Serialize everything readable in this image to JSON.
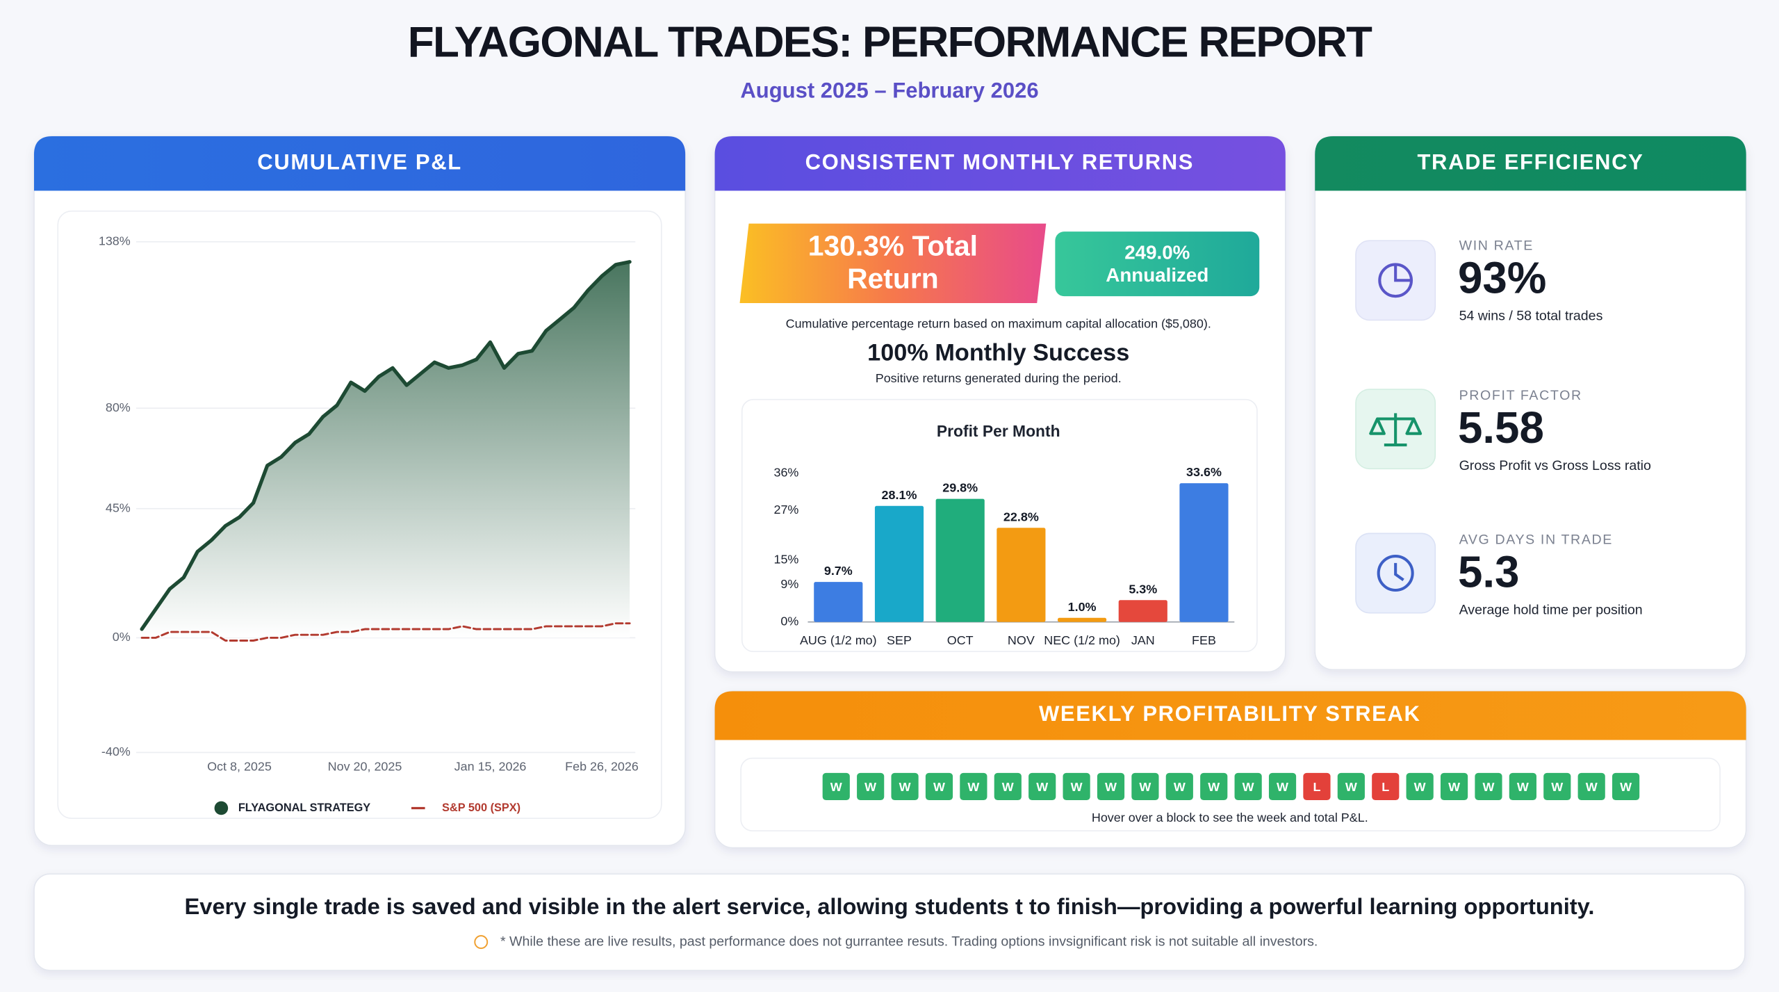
{
  "header": {
    "title": "FLYAGONAL TRADES: PERFORMANCE REPORT",
    "subtitle": "August 2025 – February 2026"
  },
  "chart_data": [
    {
      "type": "line",
      "title": "CUMULATIVE P&L",
      "categories": [
        null,
        null,
        null,
        null,
        null,
        null,
        null,
        "Oct 8, 2025",
        null,
        null,
        null,
        null,
        null,
        null,
        null,
        null,
        "Nov 20, 2025",
        null,
        null,
        null,
        null,
        null,
        null,
        null,
        null,
        "Jan 15, 2026",
        null,
        null,
        null,
        null,
        null,
        null,
        null,
        "Feb 26, 2026",
        null,
        null
      ],
      "series": [
        {
          "name": "FLYAGONAL STRATEGY",
          "color": "#1d4a33",
          "style": "solid",
          "fill": true,
          "values": [
            3,
            10,
            17,
            21,
            30,
            34,
            39,
            42,
            47,
            60,
            63,
            68,
            71,
            77,
            81,
            89,
            86,
            91,
            94,
            88,
            92,
            96,
            94,
            95,
            97,
            103,
            94,
            99,
            100,
            107,
            111,
            115,
            121,
            126,
            130,
            131
          ]
        },
        {
          "name": "S&P 500 (SPX)",
          "color": "#b23a2f",
          "style": "dashed",
          "fill": false,
          "values": [
            0,
            0,
            2,
            2,
            2,
            2,
            -1,
            -1,
            -1,
            0,
            0,
            1,
            1,
            1,
            2,
            2,
            3,
            3,
            3,
            3,
            3,
            3,
            3,
            4,
            3,
            3,
            3,
            3,
            3,
            4,
            4,
            4,
            4,
            4,
            5,
            5
          ]
        }
      ],
      "ylim": [
        -40,
        138
      ],
      "yticks": [
        {
          "value": 138,
          "label": "138%"
        },
        {
          "value": 80,
          "label": "80%"
        },
        {
          "value": 45,
          "label": "45%"
        },
        {
          "value": 0,
          "label": "0%"
        },
        {
          "value": -40,
          "label": "-40%"
        }
      ],
      "grid": true,
      "legend": "bottom"
    },
    {
      "type": "bar",
      "title": "Profit Per Month",
      "categories": [
        "AUG (1/2 mo)",
        "SEP",
        "OCT",
        "NOV",
        "NEC (1/2 mo)",
        "JAN",
        "FEB"
      ],
      "values": [
        9.7,
        28.1,
        29.8,
        22.8,
        1.0,
        5.3,
        33.6
      ],
      "value_labels": [
        "9.7%",
        "28.1%",
        "29.8%",
        "22.8%",
        "1.0%",
        "5.3%",
        "33.6%"
      ],
      "colors": [
        "#3d7de2",
        "#19a8c9",
        "#20ad7c",
        "#f39b12",
        "#f39b12",
        "#e5483c",
        "#3d7de2"
      ],
      "ylim": [
        0,
        36
      ],
      "yticks": [
        {
          "value": 36,
          "label": "36%"
        },
        {
          "value": 27,
          "label": "27%"
        },
        {
          "value": 15,
          "label": "15%"
        },
        {
          "value": 9,
          "label": "9%"
        },
        {
          "value": 0,
          "label": "0%"
        }
      ],
      "grid": false
    }
  ],
  "returns": {
    "title": "CONSISTENT MONTHLY RETURNS",
    "total": "130.3% Total Return",
    "annualized": "249.0% Annualized",
    "caption": "Cumulative percentage return based on maximum capital allocation ($5,080).",
    "success": "100% Monthly Success",
    "success_note": "Positive returns generated during the period."
  },
  "efficiency": {
    "title": "TRADE EFFICIENCY",
    "metrics": [
      {
        "label": "WIN RATE",
        "value": "93%",
        "note": "54 wins / 58 total trades"
      },
      {
        "label": "PROFIT FACTOR",
        "value": "5.58",
        "note": "Gross Profit vs Gross Loss ratio"
      },
      {
        "label": "AVG DAYS IN TRADE",
        "value": "5.3",
        "note": "Average hold time per position"
      }
    ]
  },
  "streak": {
    "title": "WEEKLY PROFITABILITY STREAK",
    "weeks": [
      "W",
      "W",
      "W",
      "W",
      "W",
      "W",
      "W",
      "W",
      "W",
      "W",
      "W",
      "W",
      "W",
      "W",
      "L",
      "W",
      "L",
      "W",
      "W",
      "W",
      "W",
      "W",
      "W",
      "W"
    ],
    "hint": "Hover over a block to see the week and total P&L."
  },
  "footer": {
    "statement": "Every single trade is saved and visible in the alert service, allowing students t to finish—providing a powerful learning opportunity.",
    "disclaimer": "* While these are live results, past performance does not gurrantee resuts. Trading options invsignificant risk is not suitable  all investors."
  }
}
